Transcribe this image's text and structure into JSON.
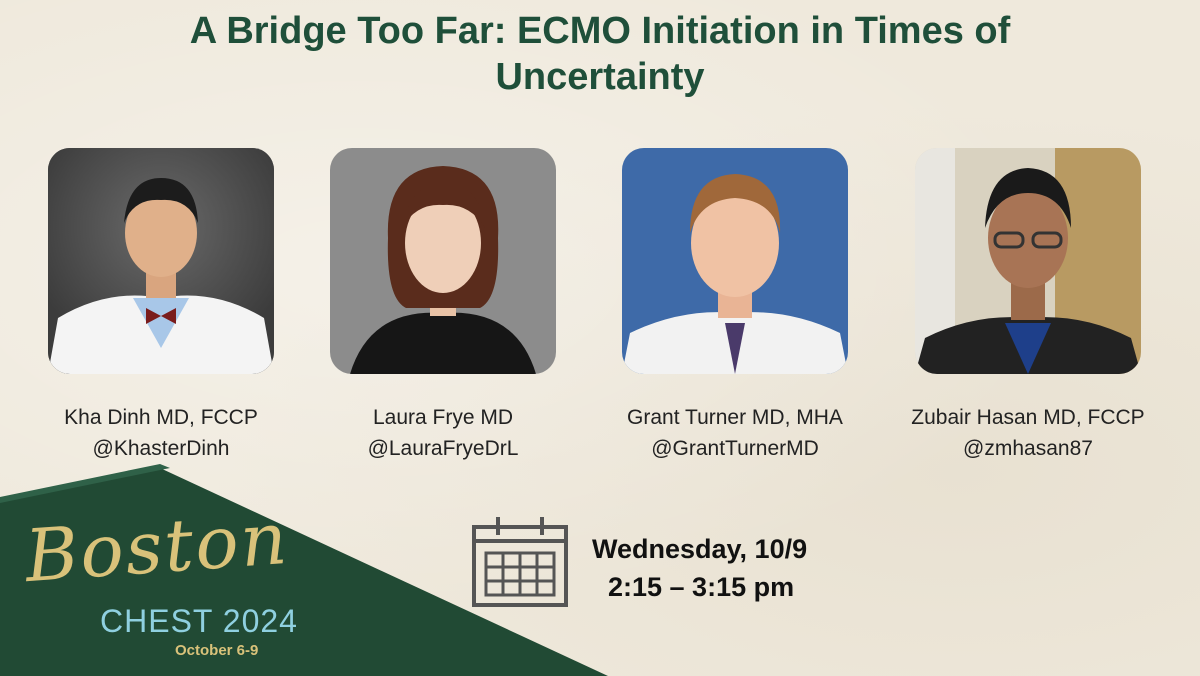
{
  "title_line1": "A Bridge Too Far: ECMO Initiation in Times of",
  "title_line2": "Uncertainty",
  "speakers": [
    {
      "name": "Kha Dinh MD, FCCP",
      "handle": "@KhasterDinh"
    },
    {
      "name": "Laura Frye MD",
      "handle": "@LauraFryeDrL"
    },
    {
      "name": "Grant Turner MD, MHA",
      "handle": "@GrantTurnerMD"
    },
    {
      "name": "Zubair Hasan MD, FCCP",
      "handle": "@zmhasan87"
    }
  ],
  "logo": {
    "script": "Boston",
    "chest": "CHEST 2024",
    "dates": "October 6-9"
  },
  "session": {
    "day": "Wednesday, 10/9",
    "time": "2:15 – 3:15 pm"
  },
  "colors": {
    "title": "#1f4f3a",
    "banner": "#214a34",
    "gold": "#d9c27a",
    "teal": "#8fd0e0"
  }
}
